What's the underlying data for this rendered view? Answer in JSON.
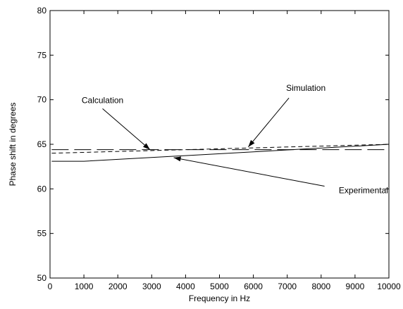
{
  "chart_data": {
    "type": "line",
    "title": "",
    "xlabel": "Frequency in Hz",
    "ylabel": "Phase shift in degrees",
    "xlim": [
      0,
      10000
    ],
    "ylim": [
      50,
      80
    ],
    "xticks": [
      0,
      1000,
      2000,
      3000,
      4000,
      5000,
      6000,
      7000,
      8000,
      9000,
      10000
    ],
    "yticks": [
      50,
      55,
      60,
      65,
      70,
      75,
      80
    ],
    "grid": false,
    "legend": "none",
    "series": [
      {
        "name": "Calculation",
        "style": "long-dash",
        "x": [
          50,
          10000
        ],
        "y": [
          64.4,
          64.4
        ]
      },
      {
        "name": "Simulation",
        "style": "short-dash",
        "x": [
          50,
          10000
        ],
        "y": [
          64.0,
          65.0
        ]
      },
      {
        "name": "Experimental",
        "style": "solid",
        "x": [
          50,
          1000,
          10000
        ],
        "y": [
          63.1,
          63.1,
          65.0
        ]
      }
    ],
    "annotations": [
      {
        "text": "Calculation",
        "text_at": [
          1550,
          69.6
        ],
        "tail": [
          1550,
          69.0
        ],
        "head": [
          2950,
          64.4
        ]
      },
      {
        "text": "Simulation",
        "text_at": [
          7550,
          71.0
        ],
        "tail": [
          7050,
          70.2
        ],
        "head": [
          5850,
          64.7
        ]
      },
      {
        "text": "Experimental",
        "text_at": [
          9250,
          59.5
        ],
        "tail": [
          8100,
          60.3
        ],
        "head": [
          3650,
          63.5
        ]
      }
    ]
  }
}
